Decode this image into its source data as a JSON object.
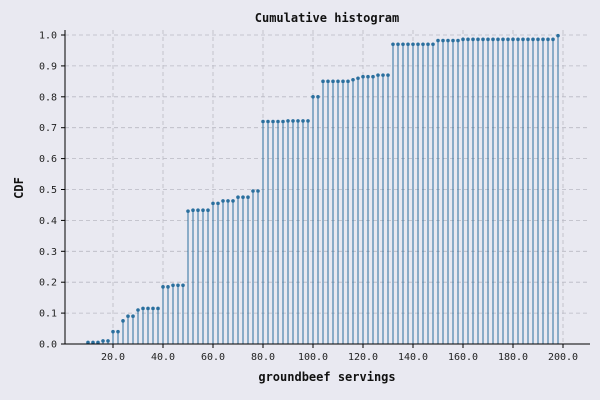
{
  "chart_data": {
    "type": "stem",
    "title": "Cumulative histogram",
    "xlabel": "groundbeef servings",
    "ylabel": "CDF",
    "xlim": [
      2,
      210
    ],
    "ylim": [
      0,
      1.0
    ],
    "x_ticks": [
      20,
      40,
      60,
      80,
      100,
      120,
      140,
      160,
      180,
      200
    ],
    "x_tick_labels": [
      "20.0",
      "40.0",
      "60.0",
      "80.0",
      "100.0",
      "120.0",
      "140.0",
      "160.0",
      "180.0",
      "200.0"
    ],
    "y_ticks": [
      0,
      0.1,
      0.2,
      0.3,
      0.4,
      0.5,
      0.6,
      0.7,
      0.8,
      0.9,
      1.0
    ],
    "y_tick_labels": [
      "0.0",
      "0.1",
      "0.2",
      "0.3",
      "0.4",
      "0.5",
      "0.6",
      "0.7",
      "0.8",
      "0.9",
      "1.0"
    ],
    "grid": true,
    "color": "#2a6f9e",
    "points": [
      {
        "x": 10,
        "y": 0.005
      },
      {
        "x": 12,
        "y": 0.005
      },
      {
        "x": 14,
        "y": 0.005
      },
      {
        "x": 16,
        "y": 0.01
      },
      {
        "x": 18,
        "y": 0.01
      },
      {
        "x": 20,
        "y": 0.04
      },
      {
        "x": 22,
        "y": 0.04
      },
      {
        "x": 24,
        "y": 0.075
      },
      {
        "x": 26,
        "y": 0.09
      },
      {
        "x": 28,
        "y": 0.09
      },
      {
        "x": 30,
        "y": 0.11
      },
      {
        "x": 32,
        "y": 0.115
      },
      {
        "x": 34,
        "y": 0.115
      },
      {
        "x": 36,
        "y": 0.115
      },
      {
        "x": 38,
        "y": 0.115
      },
      {
        "x": 40,
        "y": 0.185
      },
      {
        "x": 42,
        "y": 0.185
      },
      {
        "x": 44,
        "y": 0.19
      },
      {
        "x": 46,
        "y": 0.19
      },
      {
        "x": 48,
        "y": 0.19
      },
      {
        "x": 50,
        "y": 0.43
      },
      {
        "x": 52,
        "y": 0.433
      },
      {
        "x": 54,
        "y": 0.433
      },
      {
        "x": 56,
        "y": 0.433
      },
      {
        "x": 58,
        "y": 0.433
      },
      {
        "x": 60,
        "y": 0.455
      },
      {
        "x": 62,
        "y": 0.455
      },
      {
        "x": 64,
        "y": 0.463
      },
      {
        "x": 66,
        "y": 0.463
      },
      {
        "x": 68,
        "y": 0.463
      },
      {
        "x": 70,
        "y": 0.475
      },
      {
        "x": 72,
        "y": 0.475
      },
      {
        "x": 74,
        "y": 0.475
      },
      {
        "x": 76,
        "y": 0.495
      },
      {
        "x": 78,
        "y": 0.495
      },
      {
        "x": 80,
        "y": 0.72
      },
      {
        "x": 82,
        "y": 0.72
      },
      {
        "x": 84,
        "y": 0.72
      },
      {
        "x": 86,
        "y": 0.72
      },
      {
        "x": 88,
        "y": 0.72
      },
      {
        "x": 90,
        "y": 0.722
      },
      {
        "x": 92,
        "y": 0.722
      },
      {
        "x": 94,
        "y": 0.722
      },
      {
        "x": 96,
        "y": 0.722
      },
      {
        "x": 98,
        "y": 0.722
      },
      {
        "x": 100,
        "y": 0.8
      },
      {
        "x": 102,
        "y": 0.8
      },
      {
        "x": 104,
        "y": 0.85
      },
      {
        "x": 106,
        "y": 0.85
      },
      {
        "x": 108,
        "y": 0.85
      },
      {
        "x": 110,
        "y": 0.85
      },
      {
        "x": 112,
        "y": 0.85
      },
      {
        "x": 114,
        "y": 0.85
      },
      {
        "x": 116,
        "y": 0.855
      },
      {
        "x": 118,
        "y": 0.86
      },
      {
        "x": 120,
        "y": 0.865
      },
      {
        "x": 122,
        "y": 0.865
      },
      {
        "x": 124,
        "y": 0.865
      },
      {
        "x": 126,
        "y": 0.87
      },
      {
        "x": 128,
        "y": 0.87
      },
      {
        "x": 130,
        "y": 0.87
      },
      {
        "x": 132,
        "y": 0.97
      },
      {
        "x": 134,
        "y": 0.97
      },
      {
        "x": 136,
        "y": 0.97
      },
      {
        "x": 138,
        "y": 0.97
      },
      {
        "x": 140,
        "y": 0.97
      },
      {
        "x": 142,
        "y": 0.97
      },
      {
        "x": 144,
        "y": 0.97
      },
      {
        "x": 146,
        "y": 0.97
      },
      {
        "x": 148,
        "y": 0.97
      },
      {
        "x": 150,
        "y": 0.982
      },
      {
        "x": 152,
        "y": 0.982
      },
      {
        "x": 154,
        "y": 0.982
      },
      {
        "x": 156,
        "y": 0.982
      },
      {
        "x": 158,
        "y": 0.982
      },
      {
        "x": 160,
        "y": 0.986
      },
      {
        "x": 162,
        "y": 0.986
      },
      {
        "x": 164,
        "y": 0.986
      },
      {
        "x": 166,
        "y": 0.986
      },
      {
        "x": 168,
        "y": 0.986
      },
      {
        "x": 170,
        "y": 0.986
      },
      {
        "x": 172,
        "y": 0.986
      },
      {
        "x": 174,
        "y": 0.986
      },
      {
        "x": 176,
        "y": 0.986
      },
      {
        "x": 178,
        "y": 0.986
      },
      {
        "x": 180,
        "y": 0.986
      },
      {
        "x": 182,
        "y": 0.986
      },
      {
        "x": 184,
        "y": 0.986
      },
      {
        "x": 186,
        "y": 0.986
      },
      {
        "x": 188,
        "y": 0.986
      },
      {
        "x": 190,
        "y": 0.986
      },
      {
        "x": 192,
        "y": 0.986
      },
      {
        "x": 194,
        "y": 0.986
      },
      {
        "x": 196,
        "y": 0.986
      },
      {
        "x": 198,
        "y": 0.998
      }
    ]
  }
}
